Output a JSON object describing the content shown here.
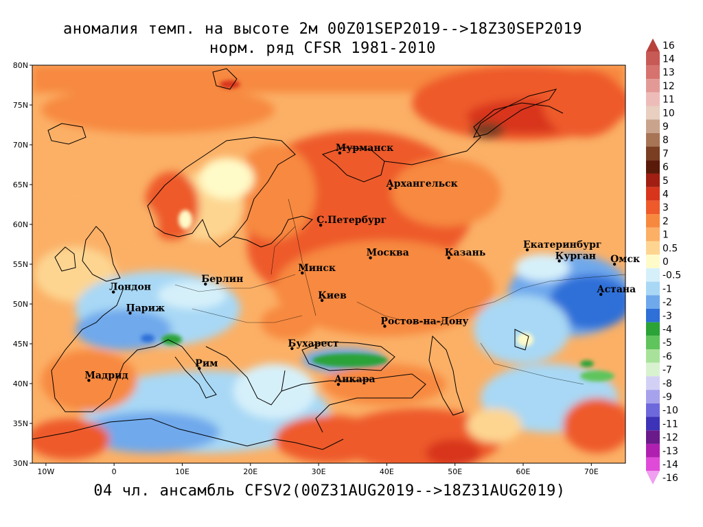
{
  "title_line1": "аномалия темп. на высоте 2м 00Z01SEP2019-->18Z30SEP2019",
  "title_line2": "норм. ряд CFSR 1981-2010",
  "footer": "04 чл. ансамбль CFSV2(00Z31AUG2019-->18Z31AUG2019)",
  "lat_ticks": [
    "80N",
    "75N",
    "70N",
    "65N",
    "60N",
    "55N",
    "50N",
    "45N",
    "40N",
    "35N",
    "30N"
  ],
  "lon_ticks": [
    "10W",
    "0",
    "10E",
    "20E",
    "30E",
    "40E",
    "50E",
    "60E",
    "70E"
  ],
  "cities": [
    {
      "name": "Мурманск",
      "lon": 33.1,
      "lat": 68.97
    },
    {
      "name": "Архангельск",
      "lon": 40.5,
      "lat": 64.5
    },
    {
      "name": "С.Петербург",
      "lon": 30.3,
      "lat": 59.9
    },
    {
      "name": "Москва",
      "lon": 37.6,
      "lat": 55.8
    },
    {
      "name": "Казань",
      "lon": 49.1,
      "lat": 55.8
    },
    {
      "name": "Екатеринбург",
      "lon": 60.6,
      "lat": 56.8
    },
    {
      "name": "Курган",
      "lon": 65.3,
      "lat": 55.4
    },
    {
      "name": "Омск",
      "lon": 73.4,
      "lat": 55.0
    },
    {
      "name": "Минск",
      "lon": 27.6,
      "lat": 53.9
    },
    {
      "name": "Берлин",
      "lon": 13.4,
      "lat": 52.5
    },
    {
      "name": "Лондон",
      "lon": -0.1,
      "lat": 51.5
    },
    {
      "name": "Париж",
      "lon": 2.35,
      "lat": 48.85
    },
    {
      "name": "Киев",
      "lon": 30.5,
      "lat": 50.45
    },
    {
      "name": "Астана",
      "lon": 71.4,
      "lat": 51.2
    },
    {
      "name": "Ростов-на-Дону",
      "lon": 39.7,
      "lat": 47.2
    },
    {
      "name": "Бухарест",
      "lon": 26.1,
      "lat": 44.4
    },
    {
      "name": "Рим",
      "lon": 12.5,
      "lat": 41.9
    },
    {
      "name": "Мадрид",
      "lon": -3.7,
      "lat": 40.4
    },
    {
      "name": "Анкара",
      "lon": 32.9,
      "lat": 39.9
    }
  ],
  "colorbar": [
    {
      "label": "16",
      "color": "#b8413c"
    },
    {
      "label": "14",
      "color": "#c85a55"
    },
    {
      "label": "13",
      "color": "#d6736e"
    },
    {
      "label": "12",
      "color": "#e39a96"
    },
    {
      "label": "11",
      "color": "#edbcb9"
    },
    {
      "label": "10",
      "color": "#e8cfc0"
    },
    {
      "label": "9",
      "color": "#c9a38c"
    },
    {
      "label": "8",
      "color": "#a87456"
    },
    {
      "label": "7",
      "color": "#7a3e22"
    },
    {
      "label": "6",
      "color": "#5a1a0a"
    },
    {
      "label": "5",
      "color": "#a01e12"
    },
    {
      "label": "4",
      "color": "#d8361c"
    },
    {
      "label": "3",
      "color": "#ee5a2a"
    },
    {
      "label": "2",
      "color": "#f7893f"
    },
    {
      "label": "1",
      "color": "#fbb066"
    },
    {
      "label": "0.5",
      "color": "#fdd591"
    },
    {
      "label": "0",
      "color": "#fffbc8"
    },
    {
      "label": "-0.5",
      "color": "#d6f0fa"
    },
    {
      "label": "-1",
      "color": "#a8d8f5"
    },
    {
      "label": "-2",
      "color": "#6fa9ec"
    },
    {
      "label": "-3",
      "color": "#2e6fd8"
    },
    {
      "label": "-4",
      "color": "#2ba337"
    },
    {
      "label": "-5",
      "color": "#5fc45c"
    },
    {
      "label": "-6",
      "color": "#a8e29a"
    },
    {
      "label": "-7",
      "color": "#d8f2d0"
    },
    {
      "label": "-8",
      "color": "#d3d0f5"
    },
    {
      "label": "-9",
      "color": "#a7a2ec"
    },
    {
      "label": "-10",
      "color": "#6e68dd"
    },
    {
      "label": "-11",
      "color": "#3d33b8"
    },
    {
      "label": "-12",
      "color": "#6a1a8a"
    },
    {
      "label": "-13",
      "color": "#b020b0"
    },
    {
      "label": "-14",
      "color": "#e04ad8"
    },
    {
      "label": "-16",
      "color": "#f0a0f0"
    }
  ]
}
